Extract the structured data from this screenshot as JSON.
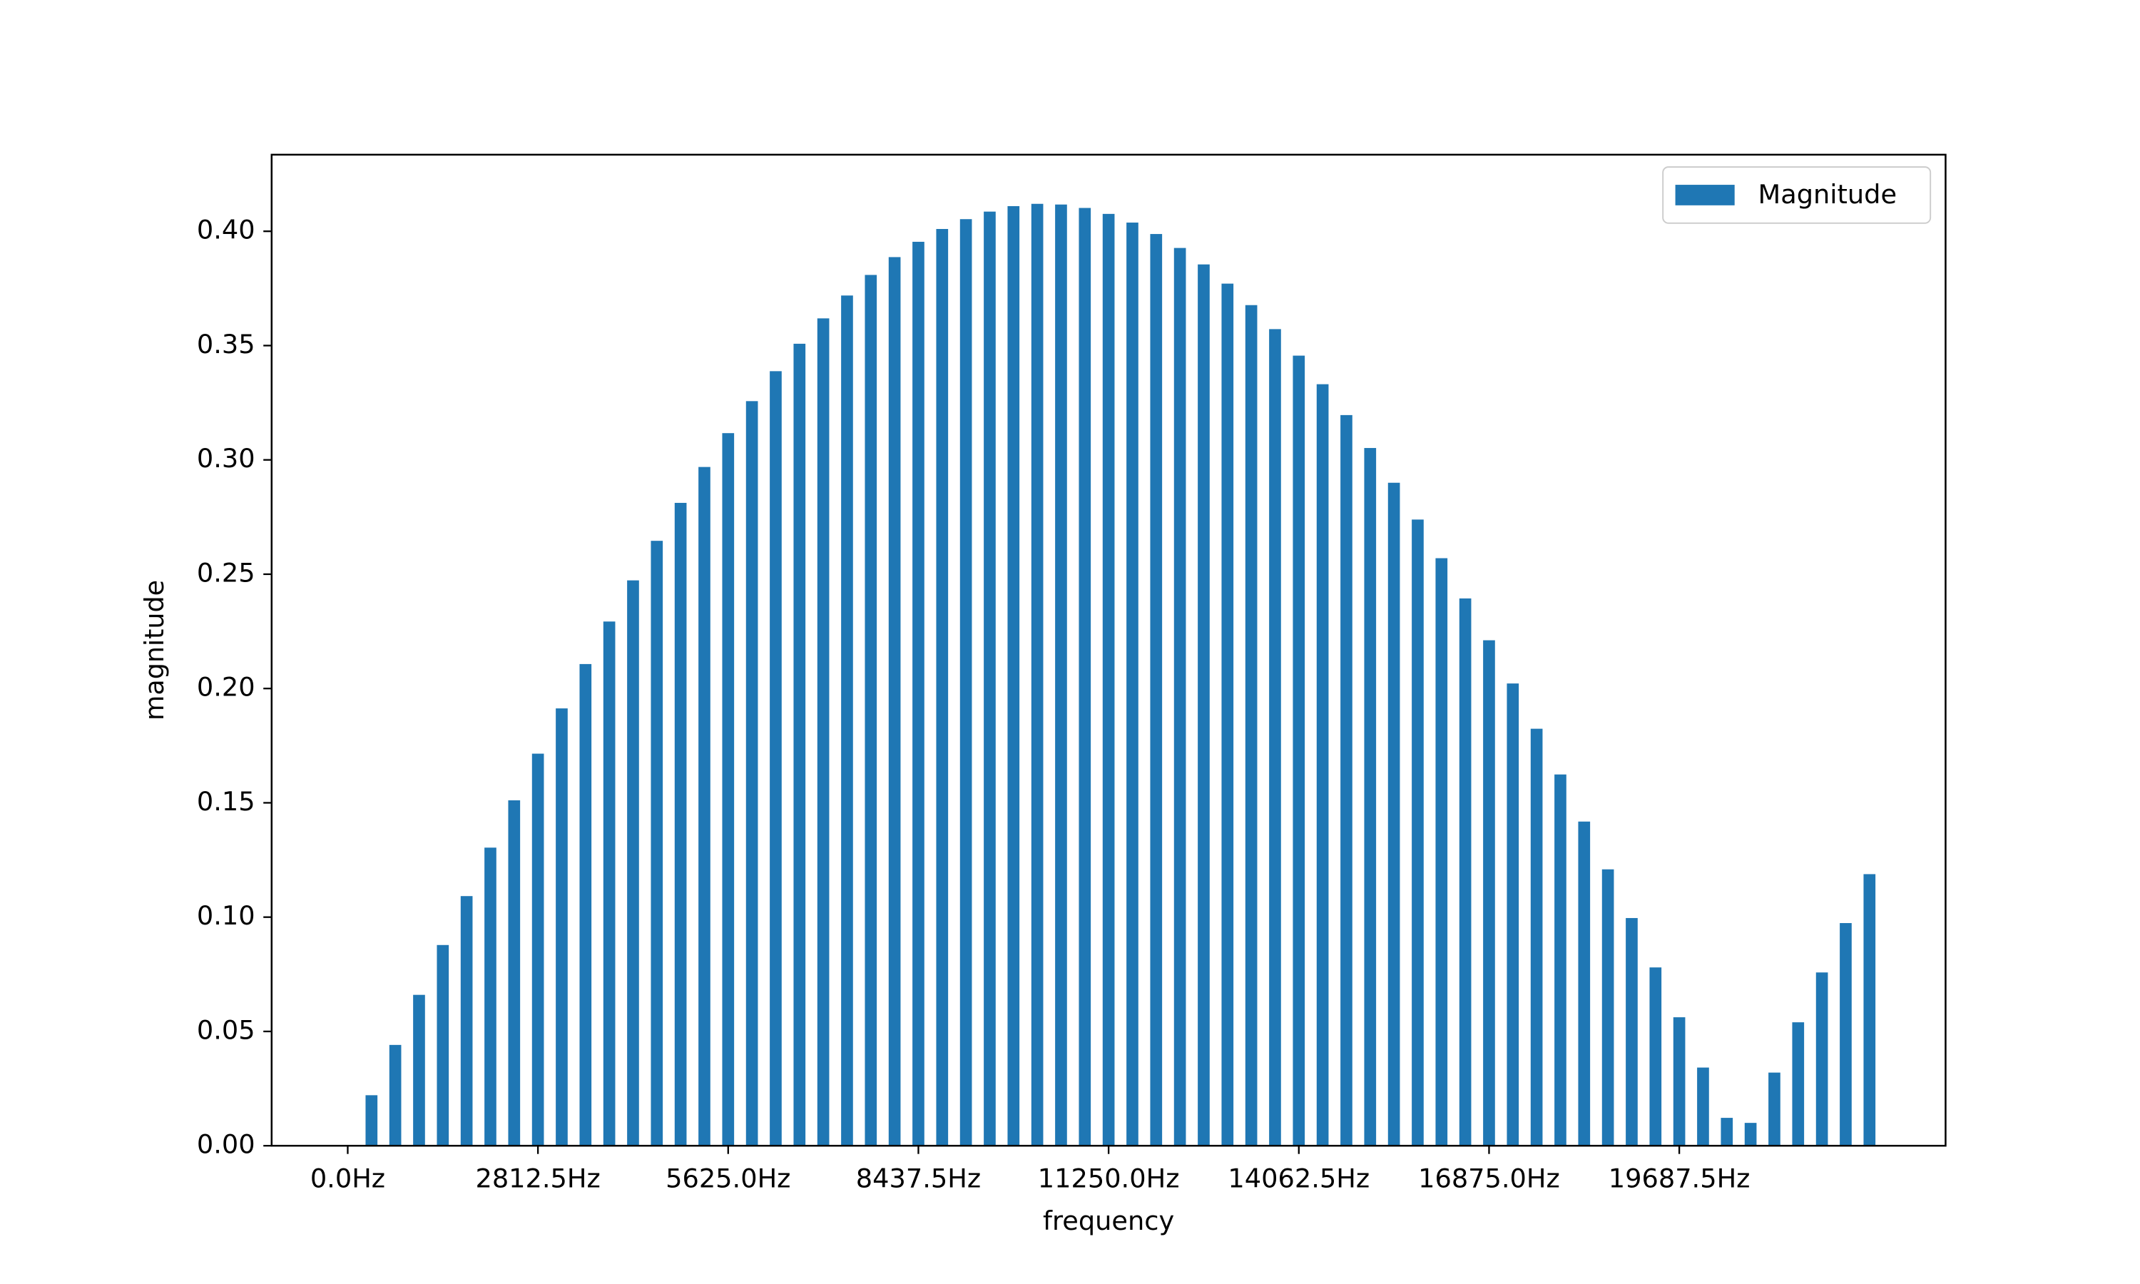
{
  "chart_data": {
    "type": "bar",
    "x_label": "frequency",
    "y_label": "magnitude",
    "legend": "upper right",
    "series": [
      {
        "name": "Magnitude",
        "color": "#1f77b4",
        "x": [
          0,
          351.5625,
          703.125,
          1054.6875,
          1406.25,
          1757.8125,
          2109.375,
          2460.9375,
          2812.5,
          3164.0625,
          3515.625,
          3867.1875,
          4218.75,
          4570.3125,
          4921.875,
          5273.4375,
          5625,
          5976.5625,
          6328.125,
          6679.6875,
          7031.25,
          7382.8125,
          7734.375,
          8085.9375,
          8437.5,
          8789.0625,
          9140.625,
          9492.1875,
          9843.75,
          10195.3125,
          10546.875,
          10898.4375,
          11250,
          11601.5625,
          11953.125,
          12304.6875,
          12656.25,
          13007.8125,
          13359.375,
          13710.9375,
          14062.5,
          14414.0625,
          14765.625,
          15117.1875,
          15468.75,
          15820.3125,
          16171.875,
          16523.4375,
          16875,
          17226.5625,
          17578.125,
          17929.6875,
          18281.25,
          18632.8125,
          18984.375,
          19335.9375,
          19687.5,
          20039.0625,
          20390.625,
          20742.1875,
          21093.75,
          21445.3125,
          21796.875,
          22148.4375,
          22500
        ],
        "values": [
          0,
          0.0221,
          0.0441,
          0.066,
          0.0878,
          0.1092,
          0.1304,
          0.1511,
          0.1715,
          0.1913,
          0.2107,
          0.2293,
          0.2473,
          0.2646,
          0.2812,
          0.2969,
          0.3117,
          0.3257,
          0.3388,
          0.3508,
          0.3619,
          0.3719,
          0.3809,
          0.3887,
          0.3954,
          0.401,
          0.4053,
          0.4086,
          0.411,
          0.412,
          0.4117,
          0.4102,
          0.4076,
          0.4038,
          0.3988,
          0.3927,
          0.3855,
          0.3771,
          0.3677,
          0.3572,
          0.3456,
          0.3331,
          0.3196,
          0.3052,
          0.29,
          0.2739,
          0.257,
          0.2394,
          0.2211,
          0.2022,
          0.1824,
          0.1624,
          0.1418,
          0.1209,
          0.0996,
          0.078,
          0.0562,
          0.0342,
          0.0122,
          0.01,
          0.032,
          0.054,
          0.0758,
          0.0974,
          0.1188
        ]
      }
    ],
    "bar_width": 175.78125,
    "xlim": [
      -1125,
      23625
    ],
    "ylim": [
      0,
      0.4335
    ],
    "xticks": [
      {
        "value": 0,
        "label": "0.0Hz"
      },
      {
        "value": 2812.5,
        "label": "2812.5Hz"
      },
      {
        "value": 5625,
        "label": "5625.0Hz"
      },
      {
        "value": 8437.5,
        "label": "8437.5Hz"
      },
      {
        "value": 11250,
        "label": "11250.0Hz"
      },
      {
        "value": 14062.5,
        "label": "14062.5Hz"
      },
      {
        "value": 16875,
        "label": "16875.0Hz"
      },
      {
        "value": 19687.5,
        "label": "19687.5Hz"
      }
    ],
    "yticks": [
      {
        "value": 0,
        "label": "0.00"
      },
      {
        "value": 0.05,
        "label": "0.05"
      },
      {
        "value": 0.1,
        "label": "0.10"
      },
      {
        "value": 0.15,
        "label": "0.15"
      },
      {
        "value": 0.2,
        "label": "0.20"
      },
      {
        "value": 0.25,
        "label": "0.25"
      },
      {
        "value": 0.3,
        "label": "0.30"
      },
      {
        "value": 0.35,
        "label": "0.35"
      },
      {
        "value": 0.4,
        "label": "0.40"
      }
    ]
  }
}
